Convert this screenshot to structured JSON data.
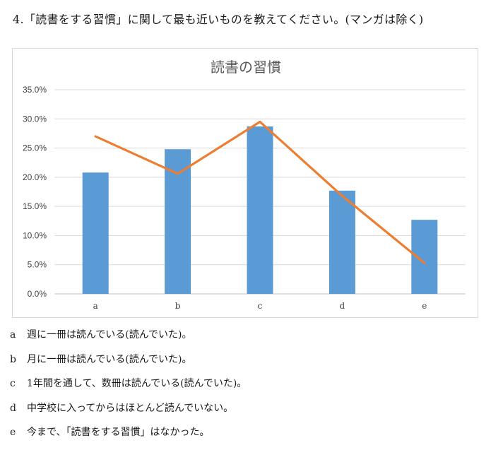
{
  "question": {
    "text": "4.「読書をする習慣」に関して最も近いものを教えてください。(マンガは除く)"
  },
  "chart_data": {
    "type": "bar",
    "title": "読書の習慣",
    "categories": [
      "a",
      "b",
      "c",
      "d",
      "e"
    ],
    "series": [
      {
        "type": "bar",
        "values": [
          20.8,
          24.8,
          28.7,
          17.7,
          12.7
        ],
        "color": "#5b9bd5"
      },
      {
        "type": "line",
        "values": [
          27.0,
          20.6,
          29.5,
          16.8,
          5.3
        ],
        "color": "#ed7d31"
      }
    ],
    "ylim": [
      0,
      35
    ],
    "yticks": [
      "0.0%",
      "5.0%",
      "10.0%",
      "15.0%",
      "20.0%",
      "25.0%",
      "30.0%",
      "35.0%"
    ],
    "grid": true,
    "legend": "none",
    "xlabel": "",
    "ylabel": ""
  },
  "options": [
    {
      "key": "a",
      "text": "週に一冊は読んでいる(読んでいた)。"
    },
    {
      "key": "b",
      "text": "月に一冊は読んでいる(読んでいた)。"
    },
    {
      "key": "c",
      "text": "1年間を通して、数冊は読んでいる(読んでいた)。"
    },
    {
      "key": "d",
      "text": "中学校に入ってからはほとんど読んでいない。"
    },
    {
      "key": "e",
      "text": "今まで、「読書をする習慣」はなかった。"
    }
  ]
}
